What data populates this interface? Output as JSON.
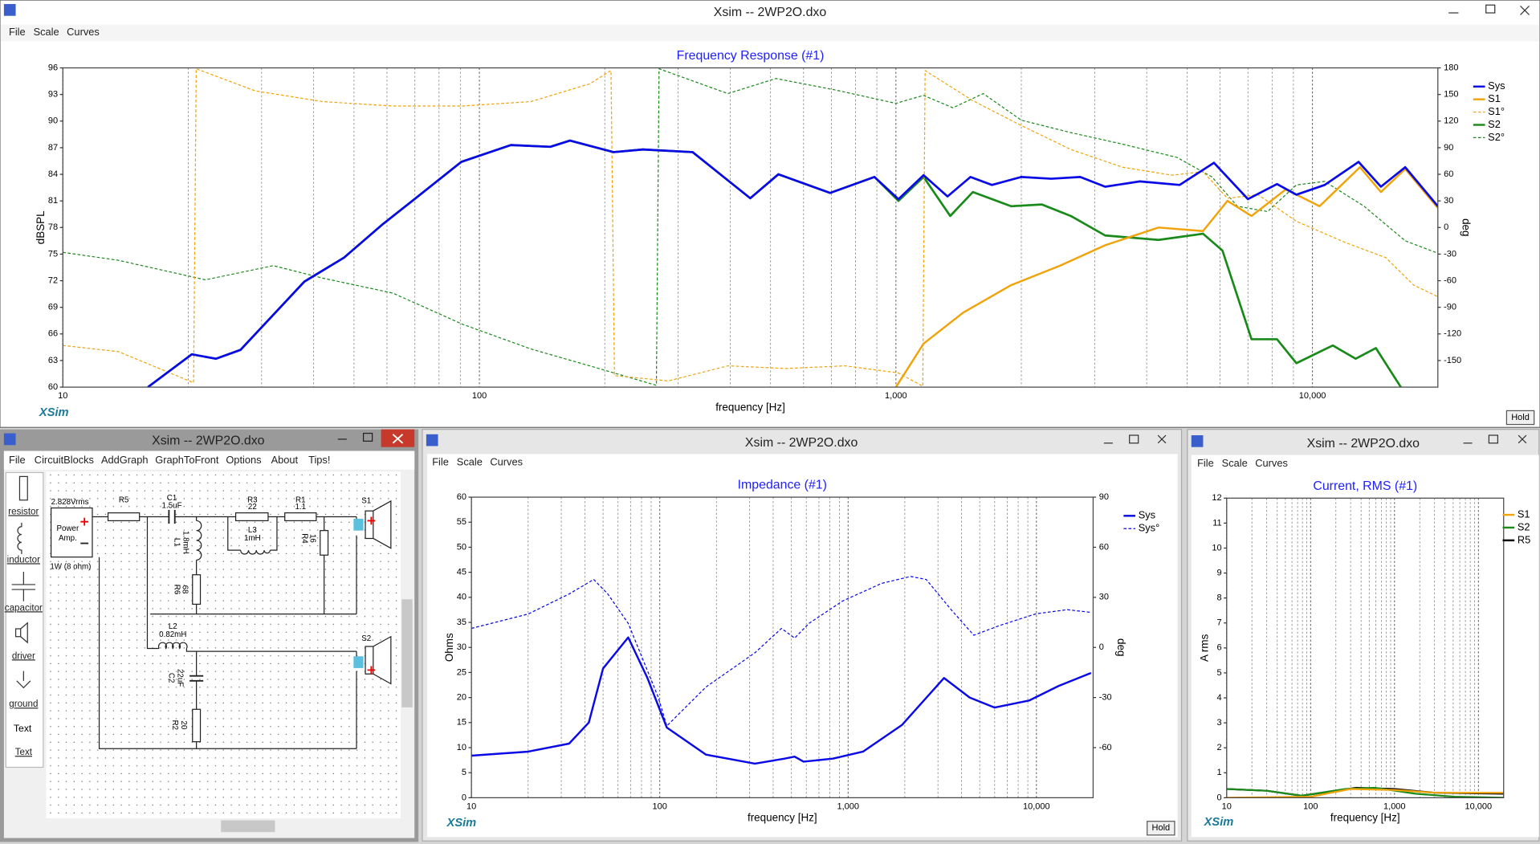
{
  "main_window": {
    "title": "Xsim -- 2WP2O.dxo",
    "menu": [
      "File",
      "Scale",
      "Curves"
    ],
    "logo": "XSim",
    "button": "Hold"
  },
  "schematic_window": {
    "title": "Xsim -- 2WP2O.dxo",
    "menu": [
      "File",
      "CircuitBlocks",
      "AddGraph",
      "GraphToFront",
      "Options",
      "About",
      "Tips!"
    ],
    "toolbar": [
      "resistor",
      "inductor",
      "capacitor",
      "driver",
      "ground",
      "Text"
    ],
    "text_icon": "Text",
    "schematic": {
      "source": {
        "voltage": "2.828Vrms",
        "name": [
          "Power",
          "Amp."
        ],
        "load": "1W (8 ohm)"
      },
      "parts": [
        {
          "ref": "R5"
        },
        {
          "ref": "C1",
          "value": "1.5uF"
        },
        {
          "ref": "R3",
          "value": "22"
        },
        {
          "ref": "R1",
          "value": "1.1"
        },
        {
          "ref": "L1",
          "value": "1.8mH"
        },
        {
          "ref": "L3",
          "value": "1mH"
        },
        {
          "ref": "R4",
          "value": "16"
        },
        {
          "ref": "R6",
          "value": "68"
        },
        {
          "ref": "L2",
          "value": "0.82mH"
        },
        {
          "ref": "C2",
          "value": "22uF"
        },
        {
          "ref": "R2",
          "value": "20"
        },
        {
          "ref": "S1"
        },
        {
          "ref": "S2"
        }
      ]
    }
  },
  "impedance_window": {
    "title": "Xsim -- 2WP2O.dxo",
    "menu": [
      "File",
      "Scale",
      "Curves"
    ],
    "logo": "XSim",
    "button": "Hold"
  },
  "current_window": {
    "title": "Xsim -- 2WP2O.dxo",
    "menu": [
      "File",
      "Scale",
      "Curves"
    ],
    "logo": "XSim"
  },
  "chart_data": [
    {
      "type": "line",
      "title": "Frequency Response (#1)",
      "xlabel": "frequency [Hz]",
      "ylabel": "dBSPL",
      "y2label": "deg",
      "xscale": "log",
      "grid": "x",
      "legend": "right",
      "xlim": [
        10,
        20000
      ],
      "xticks": [
        10,
        100,
        {
          "value": 1000,
          "label": "1,000"
        },
        {
          "value": 10000,
          "label": "10,000"
        }
      ],
      "ylim": [
        60,
        96
      ],
      "yticks": [
        60,
        63,
        66,
        69,
        72,
        75,
        78,
        81,
        84,
        87,
        90,
        93,
        96
      ],
      "y2lim": [
        -180,
        180
      ],
      "y2ticks": [
        -150,
        -120,
        -90,
        -60,
        -30,
        0,
        30,
        60,
        90,
        120,
        150,
        180
      ],
      "series": [
        {
          "name": "Sys",
          "color": "#0a0ae6",
          "width": 2.2,
          "style": "solid",
          "x": [
            16,
            20.4,
            23.3,
            26.7,
            38,
            47.3,
            58.7,
            69,
            90.5,
            119,
            148,
            165,
            210,
            247,
            325,
            447,
            522,
            695,
            888,
            1014,
            1165,
            1330,
            1510,
            1700,
            2000,
            2360,
            2770,
            3180,
            3850,
            4800,
            5800,
            7000,
            8220,
            9150,
            10700,
            12900,
            14600,
            16700,
            20000
          ],
          "values": [
            60,
            63.7,
            63.2,
            64.2,
            71.9,
            74.6,
            78.4,
            81,
            85.4,
            87.3,
            87.1,
            87.8,
            86.5,
            86.8,
            86.5,
            81.3,
            84,
            81.9,
            83.7,
            81.2,
            83.9,
            81.5,
            83.7,
            82.8,
            83.7,
            83.5,
            83.7,
            82.6,
            83.2,
            82.8,
            85.3,
            81.2,
            82.9,
            81.7,
            82.8,
            85.4,
            82.6,
            84.8,
            80.4
          ]
        },
        {
          "name": "S1",
          "color": "#f0a30a",
          "width": 2,
          "style": "solid",
          "x": [
            1000,
            1165,
            1450,
            1890,
            2480,
            3180,
            4270,
            5460,
            6250,
            7140,
            8630,
            10400,
            13000,
            14600,
            16700,
            20000
          ],
          "values": [
            60,
            64.9,
            68.4,
            71.5,
            73.7,
            76,
            78,
            77.6,
            81,
            79.3,
            82.3,
            80.4,
            84.8,
            82,
            84.6,
            80.2
          ]
        },
        {
          "name": "S1°",
          "color": "#f0a30a",
          "width": 1,
          "style": "dashed",
          "axis": "y2",
          "x": [
            10,
            13.6,
            20.6,
            20.9,
            29,
            42,
            62,
            91,
            133,
            184,
            207,
            211,
            284,
            395,
            545,
            755,
            1014,
            1160,
            1175,
            1530,
            2000,
            2630,
            3500,
            4600,
            5460,
            6250,
            7400,
            9150,
            12000,
            15000,
            17500,
            20000
          ],
          "values": [
            -133,
            -140,
            -175,
            179,
            154,
            142,
            137,
            137,
            142,
            162,
            177,
            -167,
            -173,
            -156,
            -159,
            -156,
            -164,
            -179,
            177,
            143,
            115,
            88,
            68,
            59,
            63,
            33,
            37,
            7,
            -17,
            -34,
            -65,
            -78
          ]
        },
        {
          "name": "S2",
          "color": "#1a8a1a",
          "width": 2.2,
          "style": "solid",
          "x": [
            16,
            20.4,
            23.3,
            26.7,
            38,
            47.3,
            58.7,
            69,
            90.5,
            119,
            148,
            165,
            210,
            247,
            325,
            447,
            522,
            695,
            888,
            1014,
            1165,
            1350,
            1530,
            1890,
            2240,
            2630,
            3180,
            4270,
            5460,
            6080,
            7140,
            8220,
            9150,
            11190,
            12700,
            14200,
            16300
          ],
          "values": [
            60,
            63.7,
            63.2,
            64.2,
            71.9,
            74.6,
            78.4,
            81,
            85.4,
            87.3,
            87.1,
            87.8,
            86.5,
            86.8,
            86.5,
            81.3,
            84,
            81.9,
            83.7,
            81,
            83.7,
            79.3,
            82,
            80.4,
            80.6,
            79.3,
            77.1,
            76.6,
            77.3,
            75.4,
            65.4,
            65.4,
            62.7,
            64.7,
            63.2,
            64.4,
            60
          ]
        },
        {
          "name": "S2°",
          "color": "#1a8a1a",
          "width": 1,
          "style": "dashed",
          "axis": "y2",
          "x": [
            10,
            13.6,
            22,
            32,
            42,
            62,
            91,
            133,
            184,
            266,
            270,
            395,
            515,
            717,
            1000,
            1165,
            1370,
            1620,
            2000,
            2630,
            3500,
            4730,
            5740,
            6600,
            7800,
            9150,
            10700,
            13300,
            16700,
            20000
          ],
          "values": [
            -28,
            -37,
            -59,
            -43,
            -57,
            -74,
            -109,
            -137,
            -156,
            -178,
            179,
            151,
            168,
            155,
            140,
            149,
            135,
            151,
            121,
            107,
            94,
            79,
            57,
            24,
            18,
            48,
            52,
            24,
            -15,
            -29
          ]
        }
      ]
    },
    {
      "type": "line",
      "title": "Impedance (#1)",
      "xlabel": "frequency [Hz]",
      "ylabel": "Ohms",
      "y2label": "deg",
      "xscale": "log",
      "grid": "x",
      "legend": "right",
      "xlim": [
        10,
        20000
      ],
      "xticks": [
        10,
        100,
        {
          "value": 1000,
          "label": "1,000"
        },
        {
          "value": 10000,
          "label": "10,000"
        }
      ],
      "ylim": [
        0,
        60
      ],
      "yticks": [
        0,
        5,
        10,
        15,
        20,
        25,
        30,
        35,
        40,
        45,
        50,
        55,
        60
      ],
      "y2lim": [
        -90,
        90
      ],
      "y2ticks": [
        -60,
        -30,
        0,
        30,
        60,
        90
      ],
      "series": [
        {
          "name": "Sys",
          "color": "#0a0ae6",
          "width": 2,
          "style": "solid",
          "x": [
            10,
            20,
            33,
            42,
            50,
            68,
            86,
            109,
            176,
            320,
            460,
            520,
            580,
            830,
            1200,
            1930,
            3230,
            4420,
            6000,
            9140,
            13100,
            19500
          ],
          "values": [
            8.4,
            9.2,
            10.8,
            15,
            25.8,
            32,
            23.9,
            14,
            8.6,
            6.8,
            7.8,
            8.2,
            7.2,
            7.8,
            9.2,
            14.5,
            23.9,
            20,
            18,
            19.4,
            22.3,
            24.9
          ]
        },
        {
          "name": "Sys°",
          "color": "#0a0ae6",
          "width": 1,
          "style": "dashed",
          "axis": "y2",
          "x": [
            10,
            20,
            33,
            44.6,
            53,
            68,
            98,
            109,
            176,
            320,
            443,
            520,
            620,
            935,
            1510,
            2150,
            2600,
            3500,
            4650,
            6400,
            10000,
            14600,
            19500
          ],
          "values": [
            11.4,
            20,
            32,
            40.7,
            32,
            14.4,
            -29.6,
            -47,
            -23.7,
            -3.2,
            11.4,
            5.6,
            14.4,
            27.8,
            38.4,
            42.5,
            40.7,
            23,
            7.3,
            13.2,
            20.2,
            22.6,
            21
          ]
        }
      ]
    },
    {
      "type": "line",
      "title": "Current, RMS (#1)",
      "xlabel": "frequency [Hz]",
      "ylabel": "A rms",
      "xscale": "log",
      "grid": "x",
      "legend": "right",
      "xlim": [
        10,
        20000
      ],
      "xticks": [
        10,
        100,
        {
          "value": 1000,
          "label": "1,000"
        },
        {
          "value": 10000,
          "label": "10,000"
        }
      ],
      "ylim": [
        0,
        12
      ],
      "yticks": [
        0,
        1,
        2,
        3,
        4,
        5,
        6,
        7,
        8,
        9,
        10,
        11,
        12
      ],
      "series": [
        {
          "name": "S1",
          "color": "#f0a30a",
          "width": 1.8,
          "style": "solid",
          "x": [
            10,
            100,
            300,
            1000,
            3000,
            20000
          ],
          "values": [
            0,
            0.04,
            0.35,
            0.31,
            0.2,
            0.2
          ]
        },
        {
          "name": "S2",
          "color": "#1a8a1a",
          "width": 1.8,
          "style": "solid",
          "x": [
            10,
            30,
            78,
            260,
            580,
            1780,
            5200,
            20000
          ],
          "values": [
            0.35,
            0.28,
            0.08,
            0.35,
            0.4,
            0.16,
            0.04,
            0
          ]
        },
        {
          "name": "R5",
          "color": "#000000",
          "width": 1.8,
          "style": "solid",
          "x": [
            10,
            30,
            78,
            200,
            350,
            1000,
            3000,
            20000
          ],
          "values": [
            0.35,
            0.28,
            0.08,
            0.28,
            0.4,
            0.35,
            0.2,
            0.16
          ]
        }
      ]
    }
  ]
}
